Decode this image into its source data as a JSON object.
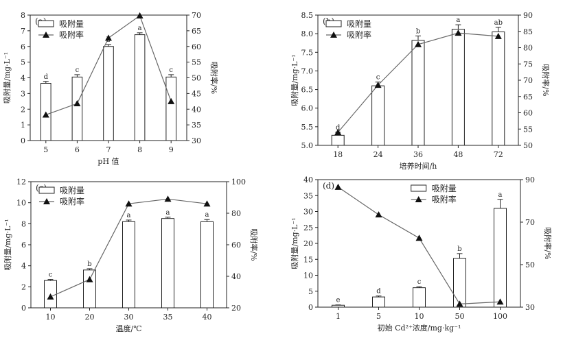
{
  "chart_data": [
    {
      "type": "bar",
      "panel_label": "(a)",
      "categories": [
        "5",
        "6",
        "7",
        "8",
        "9"
      ],
      "xlabel": "pH 值",
      "ylabel": "吸附量/mg·L⁻¹",
      "y2label": "吸附率/%",
      "ylim": [
        0,
        8
      ],
      "y2lim": [
        30,
        70
      ],
      "yticks": [
        "0",
        "1",
        "2",
        "3",
        "4",
        "5",
        "6",
        "7",
        "8"
      ],
      "y2ticks": [
        "30",
        "35",
        "40",
        "45",
        "50",
        "55",
        "60",
        "65",
        "70"
      ],
      "legend": {
        "bar": "吸附量",
        "line": "吸附率",
        "position": "top-left"
      },
      "series": [
        {
          "name": "吸附量",
          "kind": "bar",
          "values": [
            3.65,
            4.05,
            6.0,
            6.75,
            4.05
          ],
          "errors": [
            0.12,
            0.15,
            0.12,
            0.12,
            0.15
          ],
          "letters": [
            "d",
            "c",
            "b",
            "a",
            "c"
          ]
        },
        {
          "name": "吸附率",
          "kind": "line",
          "axis": "right",
          "values": [
            38.2,
            41.8,
            62.7,
            69.8,
            42.5
          ]
        }
      ]
    },
    {
      "type": "bar",
      "panel_label": "(b)",
      "categories": [
        "18",
        "24",
        "36",
        "48",
        "72"
      ],
      "xlabel": "培养时间/h",
      "ylabel": "吸附量/mg·L⁻¹",
      "y2label": "吸附率/%",
      "ylim": [
        5.0,
        8.5
      ],
      "y2lim": [
        50,
        90
      ],
      "yticks": [
        "5.0",
        "5.5",
        "6.0",
        "6.5",
        "7.0",
        "7.5",
        "8.0",
        "8.5"
      ],
      "y2ticks": [
        "50",
        "55",
        "60",
        "65",
        "70",
        "75",
        "80",
        "85",
        "90"
      ],
      "legend": {
        "bar": "吸附量",
        "line": "吸附率",
        "position": "top-left"
      },
      "series": [
        {
          "name": "吸附量",
          "kind": "bar",
          "values": [
            5.27,
            6.6,
            7.82,
            8.12,
            8.05
          ],
          "errors": [
            0.08,
            0.1,
            0.12,
            0.12,
            0.12
          ],
          "letters": [
            "d",
            "c",
            "b",
            "a",
            "ab"
          ]
        },
        {
          "name": "吸附率",
          "kind": "line",
          "axis": "right",
          "values": [
            54,
            68.5,
            81,
            84.5,
            83.5
          ]
        }
      ]
    },
    {
      "type": "bar",
      "panel_label": "(c)",
      "categories": [
        "10",
        "20",
        "30",
        "35",
        "40"
      ],
      "xlabel": "温度/℃",
      "ylabel": "吸附量/mg·L⁻¹",
      "y2label": "吸附率/%",
      "ylim": [
        0,
        12
      ],
      "y2lim": [
        20,
        100
      ],
      "yticks": [
        "0",
        "2",
        "4",
        "6",
        "8",
        "10",
        "12"
      ],
      "y2ticks": [
        "20",
        "40",
        "60",
        "80",
        "100"
      ],
      "legend": {
        "bar": "吸附量",
        "line": "吸附率",
        "position": "top-left"
      },
      "series": [
        {
          "name": "吸附量",
          "kind": "bar",
          "values": [
            2.6,
            3.6,
            8.2,
            8.5,
            8.2
          ],
          "errors": [
            0.1,
            0.12,
            0.15,
            0.12,
            0.2
          ],
          "letters": [
            "c",
            "b",
            "a",
            "a",
            "a"
          ]
        },
        {
          "name": "吸附率",
          "kind": "line",
          "axis": "right",
          "values": [
            27,
            38,
            86,
            89,
            86
          ]
        }
      ]
    },
    {
      "type": "bar",
      "panel_label": "(d)",
      "categories": [
        "1",
        "5",
        "10",
        "50",
        "100"
      ],
      "xlabel": "初始 Cd²⁺浓度/mg·kg⁻¹",
      "ylabel": "吸附量/mg·L⁻¹",
      "y2label": "吸附率/%",
      "ylim": [
        0,
        40
      ],
      "y2lim": [
        30,
        90
      ],
      "yticks": [
        "0",
        "5",
        "10",
        "15",
        "20",
        "25",
        "30",
        "35",
        "40"
      ],
      "y2ticks": [
        "30",
        "50",
        "70",
        "90"
      ],
      "legend": {
        "bar": "吸附量",
        "line": "吸附率",
        "position": "top-right"
      },
      "series": [
        {
          "name": "吸附量",
          "kind": "bar",
          "values": [
            0.6,
            3.2,
            6.1,
            15.3,
            31.0
          ],
          "errors": [
            0.1,
            0.3,
            0.3,
            1.5,
            2.8
          ],
          "letters": [
            "e",
            "d",
            "c",
            "b",
            "a"
          ]
        },
        {
          "name": "吸附率",
          "kind": "line",
          "axis": "right",
          "values": [
            86.5,
            73.5,
            62.5,
            31.5,
            32.5
          ]
        }
      ]
    }
  ]
}
